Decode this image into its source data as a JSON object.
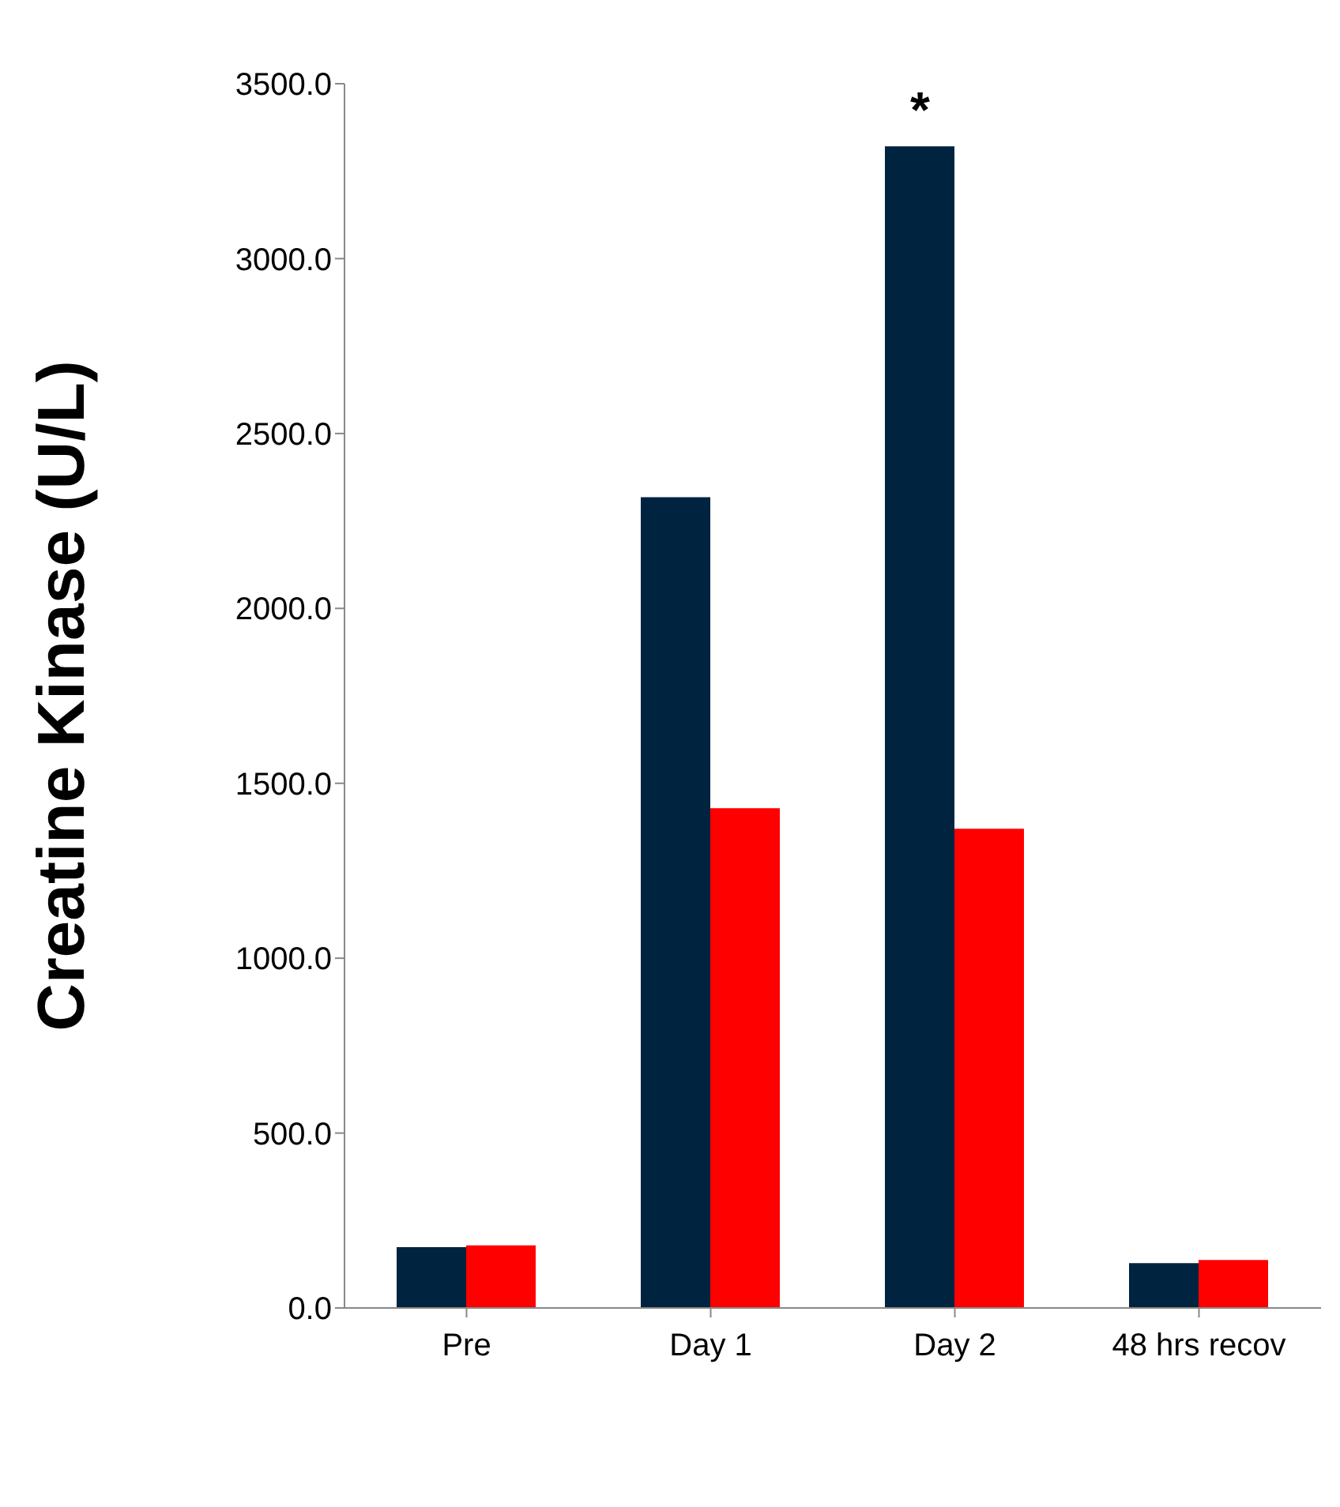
{
  "chart_data": {
    "type": "bar",
    "ylabel": "Creatine Kinase (U/L)",
    "categories": [
      "Pre",
      "Day 1",
      "Day 2",
      "48 hrs recov"
    ],
    "series": [
      {
        "color": "#002340",
        "values": [
          174,
          2318,
          3321,
          128
        ]
      },
      {
        "color": "#ff0000",
        "values": [
          179,
          1429,
          1370,
          137
        ]
      }
    ],
    "ylim": [
      0,
      3500
    ],
    "yticks": [
      {
        "value": 0,
        "label": "0.0"
      },
      {
        "value": 500,
        "label": "500.0"
      },
      {
        "value": 1000,
        "label": "1000.0"
      },
      {
        "value": 1500,
        "label": "1500.0"
      },
      {
        "value": 2000,
        "label": "2000.0"
      },
      {
        "value": 2500,
        "label": "2500.0"
      },
      {
        "value": 3000,
        "label": "3000.0"
      },
      {
        "value": 3500,
        "label": "3500.0"
      }
    ],
    "annotations": [
      {
        "text": "*",
        "x": "Day 2",
        "y": 3321
      }
    ]
  }
}
